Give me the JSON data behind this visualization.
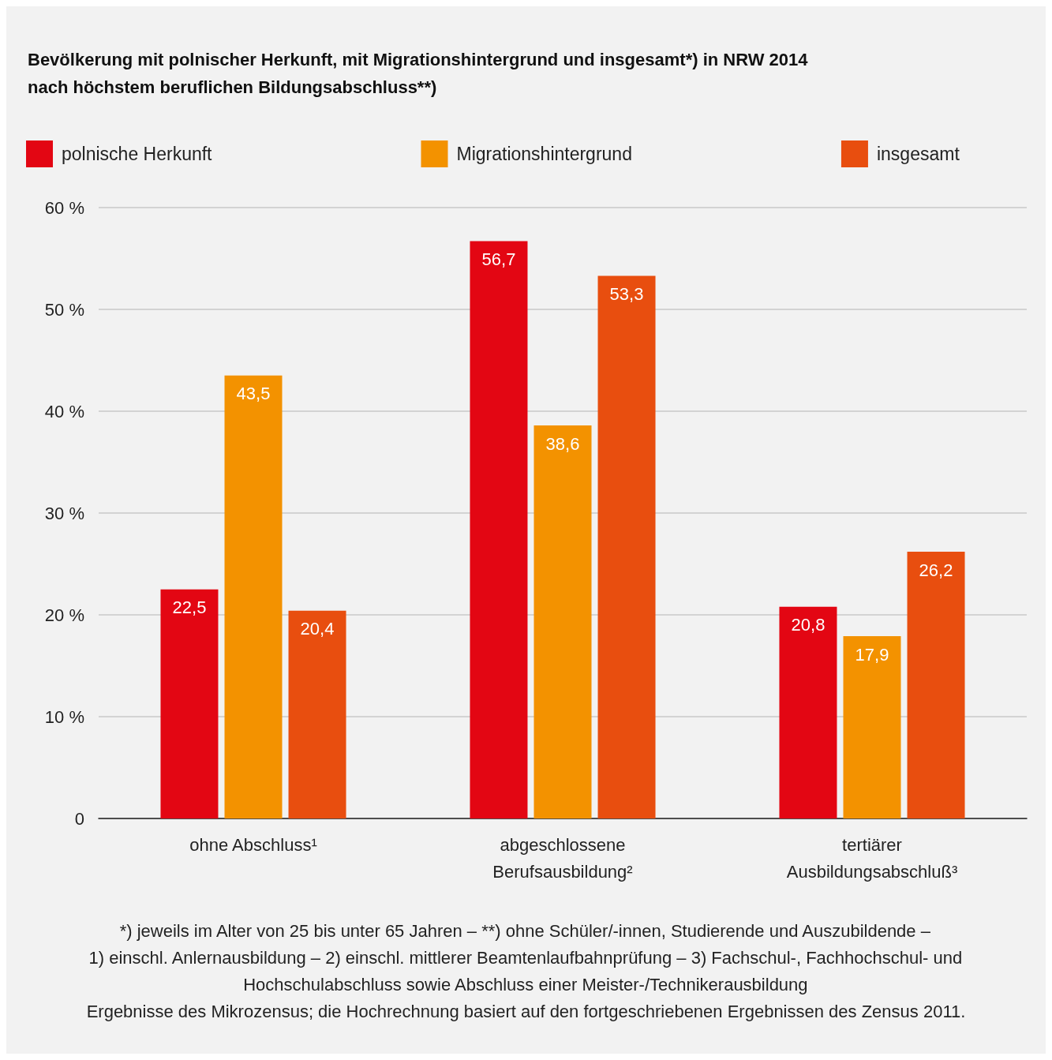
{
  "chart_data": {
    "type": "bar",
    "title": "Bevölkerung mit polnischer Herkunft, mit Migrationshintergrund und insgesamt*) in NRW 2014\nnach höchstem beruflichen Bildungsabschluss**)",
    "categories": [
      "ohne Abschluss¹",
      "abgeschlossene\nBerufsausbildung²",
      "tertiärer\nAusbildungsabschluß³"
    ],
    "series": [
      {
        "name": "polnische Herkunft",
        "color": "#e30613",
        "values": [
          22.5,
          56.7,
          20.8
        ],
        "value_labels": [
          "22,5",
          "56,7",
          "20,8"
        ]
      },
      {
        "name": "Migrationshintergrund",
        "color": "#f39200",
        "values": [
          43.5,
          38.6,
          17.9
        ],
        "value_labels": [
          "43,5",
          "38,6",
          "17,9"
        ]
      },
      {
        "name": "insgesamt",
        "color": "#e84e0f",
        "values": [
          20.4,
          53.3,
          26.2
        ],
        "value_labels": [
          "20,4",
          "53,3",
          "26,2"
        ]
      }
    ],
    "ylim": [
      0,
      60
    ],
    "yticks": [
      {
        "value": 0,
        "label": "0"
      },
      {
        "value": 10,
        "label": "10 %"
      },
      {
        "value": 20,
        "label": "20 %"
      },
      {
        "value": 30,
        "label": "30 %"
      },
      {
        "value": 40,
        "label": "40 %"
      },
      {
        "value": 50,
        "label": "50 %"
      },
      {
        "value": 60,
        "label": "60 %"
      }
    ],
    "grid": "y",
    "legend": "top",
    "annotations": [
      "*) jeweils im Alter von 25 bis unter 65 Jahren – **) ohne Schüler/-innen, Studierende und Auszubildende –",
      "1) einschl. Anlernausbildung – 2) einschl. mittlerer Beamtenlaufbahnprüfung – 3) Fachschul-, Fachhochschul- und",
      "Hochschulabschluss sowie Abschluss einer Meister-/Technikerausbildung",
      "Ergebnisse des Mikrozensus; die Hochrechnung basiert auf den fortgeschriebenen Ergebnissen des Zensus 2011."
    ]
  }
}
